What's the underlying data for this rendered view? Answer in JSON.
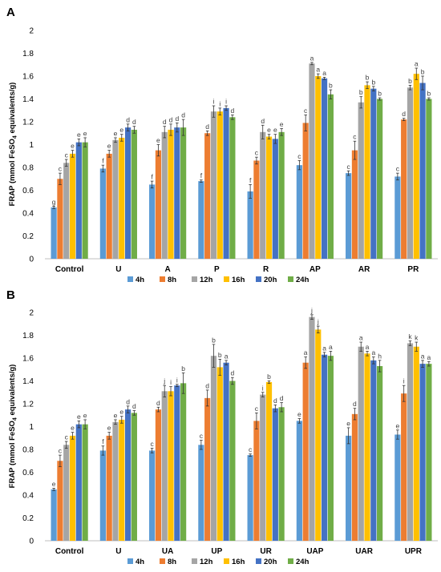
{
  "panels": [
    {
      "label": "A"
    },
    {
      "label": "B"
    }
  ],
  "chart_data": [
    {
      "type": "bar",
      "panel": "A",
      "ylabel": "FRAP (mmol FeSO4 equivalents/g)",
      "ylim": [
        0,
        2
      ],
      "yticks": [
        "0",
        "0.2",
        "0.4",
        "0.6",
        "0.8",
        "1",
        "1.2",
        "1.4",
        "1.6",
        "1.8",
        "2"
      ],
      "grid": false,
      "legend": "bottom",
      "categories": [
        "Control",
        "U",
        "A",
        "P",
        "R",
        "AP",
        "AR",
        "PR"
      ],
      "series": [
        {
          "name": "4h",
          "color": "#5B9BD5",
          "values": [
            0.45,
            0.79,
            0.65,
            0.68,
            0.59,
            0.82,
            0.75,
            0.72
          ],
          "errors": [
            0.01,
            0.03,
            0.03,
            0.01,
            0.06,
            0.04,
            0.02,
            0.03
          ],
          "letters": [
            "g",
            "f",
            "f",
            "f",
            "f",
            "c",
            "c",
            "c"
          ]
        },
        {
          "name": "8h",
          "color": "#ED7D31",
          "values": [
            0.7,
            0.92,
            0.95,
            1.1,
            0.86,
            1.19,
            0.95,
            1.22
          ],
          "errors": [
            0.05,
            0.03,
            0.05,
            0.02,
            0.03,
            0.07,
            0.08,
            0.01
          ],
          "letters": [
            "c",
            "e",
            "e",
            "d",
            "c",
            "c",
            "c",
            "d"
          ]
        },
        {
          "name": "12h",
          "color": "#A5A5A5",
          "values": [
            0.84,
            1.04,
            1.11,
            1.29,
            1.11,
            1.71,
            1.37,
            1.5
          ],
          "errors": [
            0.03,
            0.02,
            0.05,
            0.05,
            0.06,
            0.01,
            0.05,
            0.02
          ],
          "letters": [
            "c",
            "e",
            "d",
            "i",
            "d",
            "a",
            "b",
            "b"
          ]
        },
        {
          "name": "16h",
          "color": "#FFC000",
          "values": [
            0.92,
            1.06,
            1.13,
            1.29,
            1.07,
            1.6,
            1.52,
            1.62
          ],
          "errors": [
            0.03,
            0.03,
            0.05,
            0.03,
            0.02,
            0.02,
            0.03,
            0.05
          ],
          "letters": [
            "e",
            "e",
            "d",
            "i",
            "e",
            "a",
            "b",
            "a"
          ]
        },
        {
          "name": "20h",
          "color": "#4472C4",
          "values": [
            1.02,
            1.15,
            1.15,
            1.32,
            1.05,
            1.58,
            1.49,
            1.54
          ],
          "errors": [
            0.03,
            0.03,
            0.04,
            0.02,
            0.04,
            0.01,
            0.02,
            0.06
          ],
          "letters": [
            "e",
            "d",
            "d",
            "i",
            "e",
            "a",
            "b",
            "b"
          ]
        },
        {
          "name": "24h",
          "color": "#70AD47",
          "values": [
            1.02,
            1.13,
            1.15,
            1.24,
            1.11,
            1.44,
            1.4,
            1.4
          ],
          "errors": [
            0.04,
            0.03,
            0.07,
            0.02,
            0.03,
            0.04,
            0.01,
            0.01
          ],
          "letters": [
            "e",
            "d",
            "d",
            "d",
            "e",
            "b",
            "b",
            "b"
          ]
        }
      ]
    },
    {
      "type": "bar",
      "panel": "B",
      "ylabel": "FRAP (mmol FeSO4 equivalents/g)",
      "ylim": [
        0,
        2
      ],
      "yticks": [
        "0",
        "0.2",
        "0.4",
        "0.6",
        "0.8",
        "1",
        "1.2",
        "1.4",
        "1.6",
        "1.8",
        "2"
      ],
      "grid": false,
      "legend": "bottom",
      "categories": [
        "Control",
        "U",
        "UA",
        "UP",
        "UR",
        "UAP",
        "UAR",
        "UPR"
      ],
      "series": [
        {
          "name": "4h",
          "color": "#5B9BD5",
          "values": [
            0.45,
            0.79,
            0.79,
            0.84,
            0.75,
            1.05,
            0.92,
            0.93
          ],
          "errors": [
            0.01,
            0.04,
            0.02,
            0.04,
            0.01,
            0.02,
            0.07,
            0.04
          ],
          "letters": [
            "e",
            "f",
            "c",
            "c",
            "c",
            "e",
            "e",
            "e"
          ]
        },
        {
          "name": "8h",
          "color": "#ED7D31",
          "values": [
            0.7,
            0.92,
            1.15,
            1.25,
            1.05,
            1.56,
            1.11,
            1.29
          ],
          "errors": [
            0.05,
            0.03,
            0.02,
            0.07,
            0.07,
            0.05,
            0.05,
            0.07
          ],
          "letters": [
            "c",
            "e",
            "d",
            "d",
            "c",
            "a",
            "d",
            "i"
          ]
        },
        {
          "name": "12h",
          "color": "#A5A5A5",
          "values": [
            0.84,
            1.04,
            1.31,
            1.62,
            1.28,
            1.96,
            1.7,
            1.73
          ],
          "errors": [
            0.03,
            0.02,
            0.05,
            0.1,
            0.02,
            0.02,
            0.04,
            0.02
          ],
          "letters": [
            "c",
            "e",
            "j",
            "b",
            "i",
            "j",
            "a",
            "k"
          ]
        },
        {
          "name": "16h",
          "color": "#FFC000",
          "values": [
            0.92,
            1.06,
            1.31,
            1.52,
            1.39,
            1.85,
            1.64,
            1.7
          ],
          "errors": [
            0.03,
            0.03,
            0.04,
            0.07,
            0.01,
            0.03,
            0.02,
            0.04
          ],
          "letters": [
            "e",
            "e",
            "i",
            "b",
            "b",
            "j",
            "a",
            "k"
          ]
        },
        {
          "name": "20h",
          "color": "#4472C4",
          "values": [
            1.02,
            1.15,
            1.36,
            1.56,
            1.16,
            1.63,
            1.58,
            1.55
          ],
          "errors": [
            0.03,
            0.03,
            0.01,
            0.02,
            0.03,
            0.02,
            0.03,
            0.03
          ],
          "letters": [
            "e",
            "d",
            "i",
            "a",
            "d",
            "a",
            "a",
            "a"
          ]
        },
        {
          "name": "24h",
          "color": "#70AD47",
          "values": [
            1.02,
            1.12,
            1.38,
            1.4,
            1.17,
            1.62,
            1.53,
            1.55
          ],
          "errors": [
            0.04,
            0.02,
            0.09,
            0.03,
            0.04,
            0.04,
            0.05,
            0.02
          ],
          "letters": [
            "e",
            "d",
            "b",
            "d",
            "d",
            "a",
            "h",
            "a"
          ]
        }
      ]
    }
  ]
}
